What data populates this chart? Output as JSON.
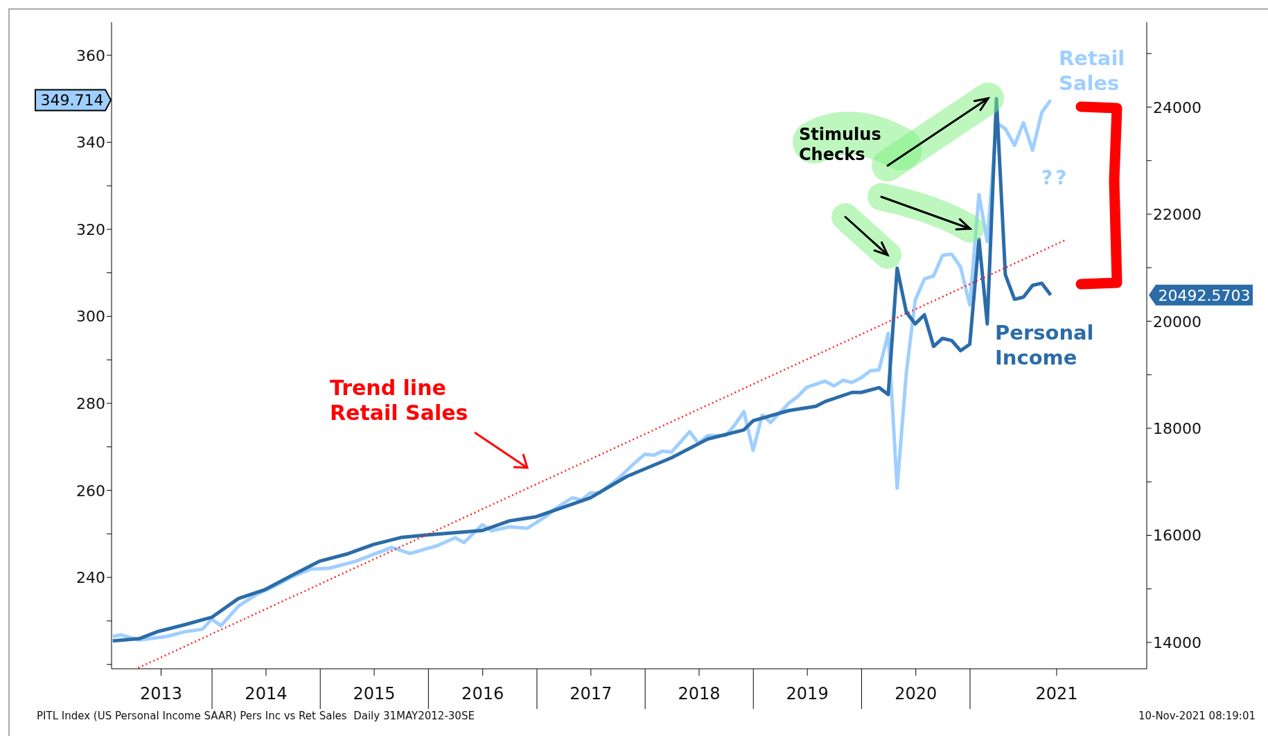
{
  "chart_data": {
    "type": "line",
    "marker": "none",
    "line_style": "solid",
    "xlim": [
      "2013-01-27",
      "2022-08-20"
    ],
    "xticks": [
      {
        "value": "2013-07-13",
        "label": "2013"
      },
      {
        "value": "2014-01-01",
        "label": null
      },
      {
        "value": "2014-07-02",
        "label": "2014"
      },
      {
        "value": "2015-01-01",
        "label": null
      },
      {
        "value": "2015-07-02",
        "label": "2015"
      },
      {
        "value": "2016-01-01",
        "label": null
      },
      {
        "value": "2016-07-02",
        "label": "2016"
      },
      {
        "value": "2017-01-01",
        "label": null
      },
      {
        "value": "2017-07-02",
        "label": "2017"
      },
      {
        "value": "2018-01-01",
        "label": null
      },
      {
        "value": "2018-07-02",
        "label": "2018"
      },
      {
        "value": "2019-01-01",
        "label": null
      },
      {
        "value": "2019-07-02",
        "label": "2019"
      },
      {
        "value": "2020-01-01",
        "label": null
      },
      {
        "value": "2020-07-02",
        "label": "2020"
      },
      {
        "value": "2021-01-01",
        "label": null
      },
      {
        "value": "2021-10-20",
        "label": "2021"
      }
    ],
    "ylim": [
      219,
      367.6
    ],
    "yticks": [
      {
        "value": 220,
        "label": null
      },
      {
        "value": 230,
        "label": null
      },
      240,
      {
        "value": 250,
        "label": null
      },
      260,
      {
        "value": 270,
        "label": null
      },
      280,
      {
        "value": 290,
        "label": null
      },
      300,
      {
        "value": 310,
        "label": null
      },
      320,
      {
        "value": 330,
        "label": null
      },
      340,
      {
        "value": 350,
        "label": null
      },
      360
    ],
    "y2lim": [
      13508,
      25586
    ],
    "y2ticks": [
      14000,
      {
        "value": 15000,
        "label": null
      },
      16000,
      {
        "value": 17000,
        "label": null
      },
      18000,
      {
        "value": 19000,
        "label": null
      },
      20000,
      {
        "value": 21000,
        "label": null
      },
      22000,
      {
        "value": 23000,
        "label": null
      },
      24000,
      {
        "value": 25000,
        "label": null
      }
    ],
    "series": [
      {
        "name": "Retail Sales",
        "color": "#9fcfff",
        "x": [
          "2013-01-31",
          "2013-02-28",
          "2013-04-30",
          "2013-07-31",
          "2013-09-30",
          "2013-11-30",
          "2013-12-31",
          "2014-01-31",
          "2014-03-31",
          "2014-05-31",
          "2014-07-31",
          "2014-09-30",
          "2014-11-30",
          "2015-01-31",
          "2015-04-30",
          "2015-06-30",
          "2015-08-31",
          "2015-10-31",
          "2016-01-31",
          "2016-03-31",
          "2016-04-30",
          "2016-06-30",
          "2016-07-31",
          "2016-09-30",
          "2016-11-30",
          "2017-01-31",
          "2017-02-28",
          "2017-04-30",
          "2017-05-31",
          "2017-06-30",
          "2017-07-31",
          "2017-09-30",
          "2017-11-30",
          "2017-12-31",
          "2018-01-31",
          "2018-02-28",
          "2018-03-31",
          "2018-05-31",
          "2018-06-30",
          "2018-07-31",
          "2018-09-30",
          "2018-10-31",
          "2018-11-30",
          "2018-12-31",
          "2019-01-31",
          "2019-02-28",
          "2019-04-30",
          "2019-05-31",
          "2019-06-30",
          "2019-08-31",
          "2019-09-30",
          "2019-10-31",
          "2019-11-30",
          "2019-12-31",
          "2020-01-31",
          "2020-02-29",
          "2020-03-31",
          "2020-04-30",
          "2020-05-31",
          "2020-06-30",
          "2020-07-31",
          "2020-08-31",
          "2020-09-30",
          "2020-10-31",
          "2020-11-30",
          "2020-12-31",
          "2021-01-31",
          "2021-02-28",
          "2021-03-31",
          "2021-04-30",
          "2021-05-31",
          "2021-06-30",
          "2021-07-31",
          "2021-08-31",
          "2021-09-30"
        ],
        "values": [
          226.4,
          226.8,
          225.6,
          226.4,
          227.5,
          228.1,
          230.4,
          228.9,
          233.4,
          236.1,
          238.0,
          240.2,
          241.9,
          242.1,
          243.7,
          245.3,
          246.9,
          245.5,
          247.3,
          249.1,
          248.0,
          252.1,
          250.7,
          251.6,
          251.3,
          254.0,
          255.6,
          258.3,
          257.8,
          259.4,
          259.4,
          262.6,
          266.5,
          268.3,
          268.1,
          269.0,
          268.8,
          273.5,
          270.8,
          272.6,
          272.6,
          275.1,
          278.1,
          269.2,
          277.3,
          275.6,
          280.0,
          281.6,
          283.7,
          285.1,
          284.0,
          285.3,
          284.8,
          285.9,
          287.5,
          287.7,
          296.1,
          260.5,
          287.0,
          303.7,
          308.6,
          309.3,
          314.0,
          314.3,
          311.3,
          302.6,
          328.0,
          317.2,
          344.5,
          343.1,
          339.3,
          344.5,
          338.2,
          346.9,
          349.7
        ]
      },
      {
        "name": "Personal Income",
        "color": "#2b6ca8",
        "axis": "y2",
        "x": [
          "2013-01-31",
          "2013-04-30",
          "2013-06-30",
          "2013-09-30",
          "2013-12-31",
          "2014-03-31",
          "2014-06-30",
          "2014-09-30",
          "2014-12-31",
          "2015-03-31",
          "2015-06-30",
          "2015-09-30",
          "2015-12-31",
          "2016-06-30",
          "2016-09-30",
          "2016-12-31",
          "2017-06-30",
          "2017-10-31",
          "2018-03-31",
          "2018-07-31",
          "2018-11-30",
          "2018-12-31",
          "2019-04-30",
          "2019-07-31",
          "2019-08-31",
          "2019-11-30",
          "2019-12-31",
          "2020-02-29",
          "2020-03-31",
          "2020-04-30",
          "2020-05-31",
          "2020-06-30",
          "2020-07-31",
          "2020-08-31",
          "2020-09-30",
          "2020-10-31",
          "2020-11-30",
          "2020-12-31",
          "2021-01-31",
          "2021-02-28",
          "2021-03-31",
          "2021-04-30",
          "2021-05-31",
          "2021-06-30",
          "2021-07-31",
          "2021-08-31",
          "2021-09-30"
        ],
        "values": [
          14030,
          14070,
          14200,
          14330,
          14470,
          14820,
          14990,
          15260,
          15520,
          15650,
          15830,
          15960,
          16010,
          16090,
          16270,
          16350,
          16700,
          17100,
          17450,
          17800,
          17970,
          18140,
          18330,
          18410,
          18500,
          18670,
          18670,
          18760,
          18630,
          20990,
          20170,
          19950,
          20120,
          19530,
          19680,
          19640,
          19450,
          19570,
          21530,
          19950,
          24160,
          20870,
          20410,
          20450,
          20670,
          20710,
          20490
        ]
      },
      {
        "type": "line",
        "color": "#ff2020",
        "line_style": "dotted",
        "x": [
          "2013-04-27",
          "2021-11-24"
        ],
        "values": [
          219.2,
          317.7
        ]
      }
    ],
    "annotations": [
      "349.714",
      "20492.5703",
      "Trend line Retail Sales",
      "Stimulus Checks",
      "??",
      "PITL Index (US Personal Income SAAR) Pers Inc vs Ret Sales  Daily 31MAY2012-30SE",
      "10-Nov-2021 08:19:01"
    ]
  }
}
